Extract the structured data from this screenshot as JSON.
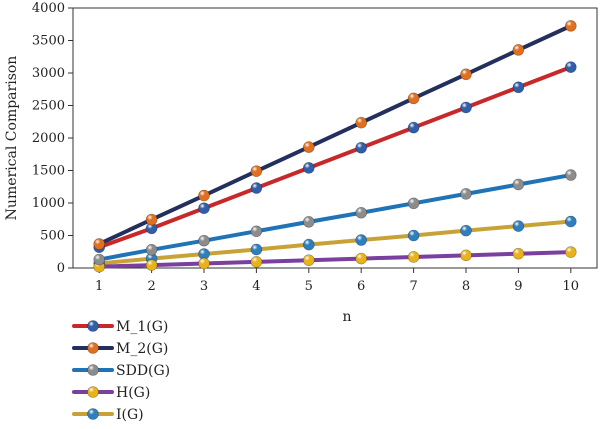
{
  "chart_data": {
    "type": "line",
    "xlabel": "n",
    "ylabel": "Numerical Comparison",
    "x": [
      1,
      2,
      3,
      4,
      5,
      6,
      7,
      8,
      9,
      10
    ],
    "xlim": [
      0.5,
      10.5
    ],
    "ylim": [
      0,
      4000
    ],
    "yticks": [
      0,
      500,
      1000,
      1500,
      2000,
      2500,
      3000,
      3500,
      4000
    ],
    "grid": false,
    "legend_position": "bottom-left",
    "series": [
      {
        "name": "M_1(G)",
        "line_color": "#c8282a",
        "marker_color": "#2f5fa8",
        "values": [
          320,
          610,
          920,
          1230,
          1540,
          1850,
          2160,
          2470,
          2780,
          3090
        ]
      },
      {
        "name": "M_2(G)",
        "line_color": "#23305e",
        "marker_color": "#e0701f",
        "values": [
          370,
          745,
          1115,
          1490,
          1860,
          2235,
          2610,
          2980,
          3355,
          3725
        ]
      },
      {
        "name": "SDD(G)",
        "line_color": "#1f73b7",
        "marker_color": "#8c8c8c",
        "values": [
          130,
          280,
          420,
          565,
          710,
          850,
          995,
          1140,
          1285,
          1430
        ]
      },
      {
        "name": "H(G)",
        "line_color": "#7b3f9e",
        "marker_color": "#e8b21a",
        "values": [
          20,
          45,
          70,
          95,
          120,
          145,
          170,
          195,
          220,
          245
        ]
      },
      {
        "name": "I(G)",
        "line_color": "#c9a237",
        "marker_color": "#2f7fc0",
        "values": [
          70,
          145,
          215,
          285,
          360,
          430,
          500,
          575,
          645,
          715
        ]
      }
    ]
  }
}
